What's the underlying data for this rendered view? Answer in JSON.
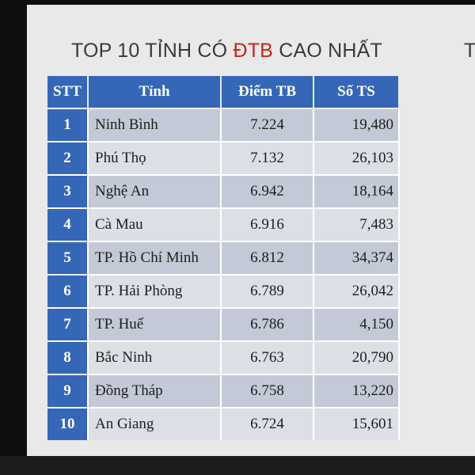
{
  "title": {
    "before": "TOP 10 TỈNH CÓ ",
    "accent": "ĐTB",
    "after": " CAO NHẤT",
    "edge_text": "T"
  },
  "colors": {
    "header_blue": "#3567b6",
    "accent_red": "#c8231d",
    "row_odd": "#c3c9d6",
    "row_even": "#dcdfe6",
    "slide_bg": "#e9e9e9"
  },
  "table": {
    "headers": [
      "STT",
      "Tỉnh",
      "Điểm TB",
      "Số TS"
    ],
    "rows": [
      {
        "stt": "1",
        "tinh": "Ninh Bình",
        "diem": "7.224",
        "so": "19,480"
      },
      {
        "stt": "2",
        "tinh": "Phú Thọ",
        "diem": "7.132",
        "so": "26,103"
      },
      {
        "stt": "3",
        "tinh": "Nghệ An",
        "diem": "6.942",
        "so": "18,164"
      },
      {
        "stt": "4",
        "tinh": "Cà Mau",
        "diem": "6.916",
        "so": "7,483"
      },
      {
        "stt": "5",
        "tinh": "TP. Hồ Chí Minh",
        "diem": "6.812",
        "so": "34,374"
      },
      {
        "stt": "6",
        "tinh": "TP. Hải Phòng",
        "diem": "6.789",
        "so": "26,042"
      },
      {
        "stt": "7",
        "tinh": "TP. Huế",
        "diem": "6.786",
        "so": "4,150"
      },
      {
        "stt": "8",
        "tinh": "Bắc Ninh",
        "diem": "6.763",
        "so": "20,790"
      },
      {
        "stt": "9",
        "tinh": "Đồng Tháp",
        "diem": "6.758",
        "so": "13,220"
      },
      {
        "stt": "10",
        "tinh": "An Giang",
        "diem": "6.724",
        "so": "15,601"
      }
    ]
  }
}
